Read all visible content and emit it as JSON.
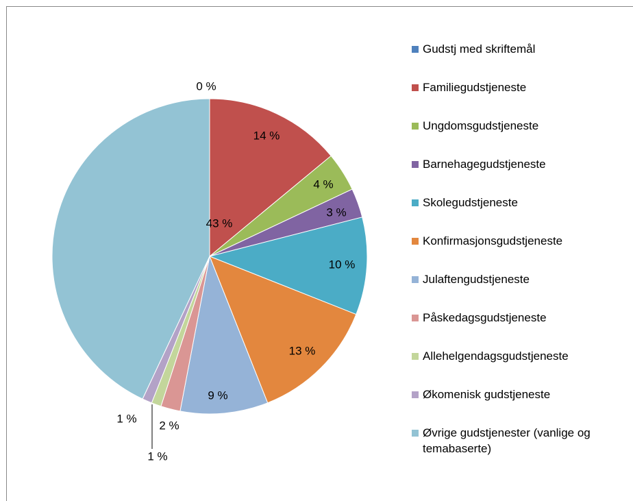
{
  "chart_data": {
    "type": "pie",
    "categories": [
      "Gudstj med skriftemål",
      "Familiegudstjeneste",
      "Ungdomsgudstjeneste",
      "Barnehagegudstjeneste",
      "Skolegudstjeneste",
      "Konfirmasjonsgudstjeneste",
      "Julaftengudstjeneste",
      "Påskedagsgudstjeneste",
      "Allehelgendagsgudstjeneste",
      "Økomenisk gudstjeneste",
      "Øvrige gudstjenester (vanlige og temabaserte)"
    ],
    "values": [
      0,
      14,
      4,
      3,
      10,
      13,
      9,
      2,
      1,
      1,
      43
    ],
    "value_labels": [
      "0 %",
      "14 %",
      "4 %",
      "3 %",
      "10 %",
      "13 %",
      "9 %",
      "2 %",
      "1 %",
      "1 %",
      "43 %"
    ],
    "colors": [
      "#4f81bd",
      "#c0504d",
      "#9bbb59",
      "#8064a2",
      "#4bacc6",
      "#e3873e",
      "#95b3d7",
      "#da9694",
      "#c3d69b",
      "#b3a2c7",
      "#93c3d4"
    ],
    "legend": "right"
  }
}
